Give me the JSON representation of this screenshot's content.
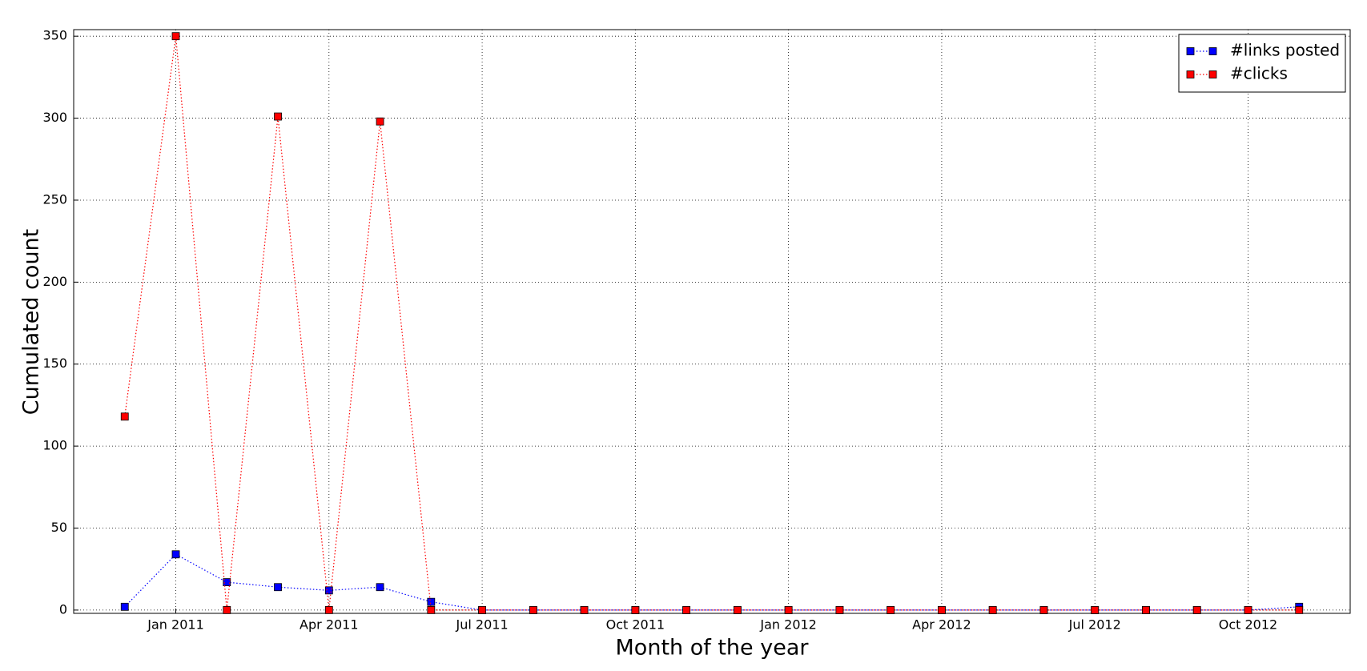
{
  "chart_data": {
    "type": "line",
    "xlabel": "Month of the year",
    "ylabel": "Cumulated count",
    "x": [
      "2010-12",
      "2011-01",
      "2011-02",
      "2011-03",
      "2011-04",
      "2011-05",
      "2011-06",
      "2011-07",
      "2011-08",
      "2011-09",
      "2011-10",
      "2011-11",
      "2011-12",
      "2012-01",
      "2012-02",
      "2012-03",
      "2012-04",
      "2012-05",
      "2012-06",
      "2012-07",
      "2012-08",
      "2012-09",
      "2012-10",
      "2012-11"
    ],
    "series": [
      {
        "name": "#links posted",
        "color": "#0000ff",
        "values": [
          2,
          34,
          17,
          14,
          12,
          14,
          5,
          0,
          0,
          0,
          0,
          0,
          0,
          0,
          0,
          0,
          0,
          0,
          0,
          0,
          0,
          0,
          0,
          2
        ]
      },
      {
        "name": "#clicks",
        "color": "#ff0000",
        "values": [
          118,
          350,
          0,
          301,
          0,
          298,
          0,
          0,
          0,
          0,
          0,
          0,
          0,
          0,
          0,
          0,
          0,
          0,
          0,
          0,
          0,
          0,
          0,
          0
        ]
      }
    ],
    "xlim": [
      "2010-11",
      "2012-12"
    ],
    "xticks": [
      {
        "value": "2011-01",
        "label": "Jan 2011"
      },
      {
        "value": "2011-04",
        "label": "Apr 2011"
      },
      {
        "value": "2011-07",
        "label": "Jul 2011"
      },
      {
        "value": "2011-10",
        "label": "Oct 2011"
      },
      {
        "value": "2012-01",
        "label": "Jan 2012"
      },
      {
        "value": "2012-04",
        "label": "Apr 2012"
      },
      {
        "value": "2012-07",
        "label": "Jul 2012"
      },
      {
        "value": "2012-10",
        "label": "Oct 2012"
      }
    ],
    "ylim": [
      -2,
      354
    ],
    "yticks": [
      0,
      50,
      100,
      150,
      200,
      250,
      300,
      350
    ],
    "grid": true,
    "legend": "upper right"
  }
}
